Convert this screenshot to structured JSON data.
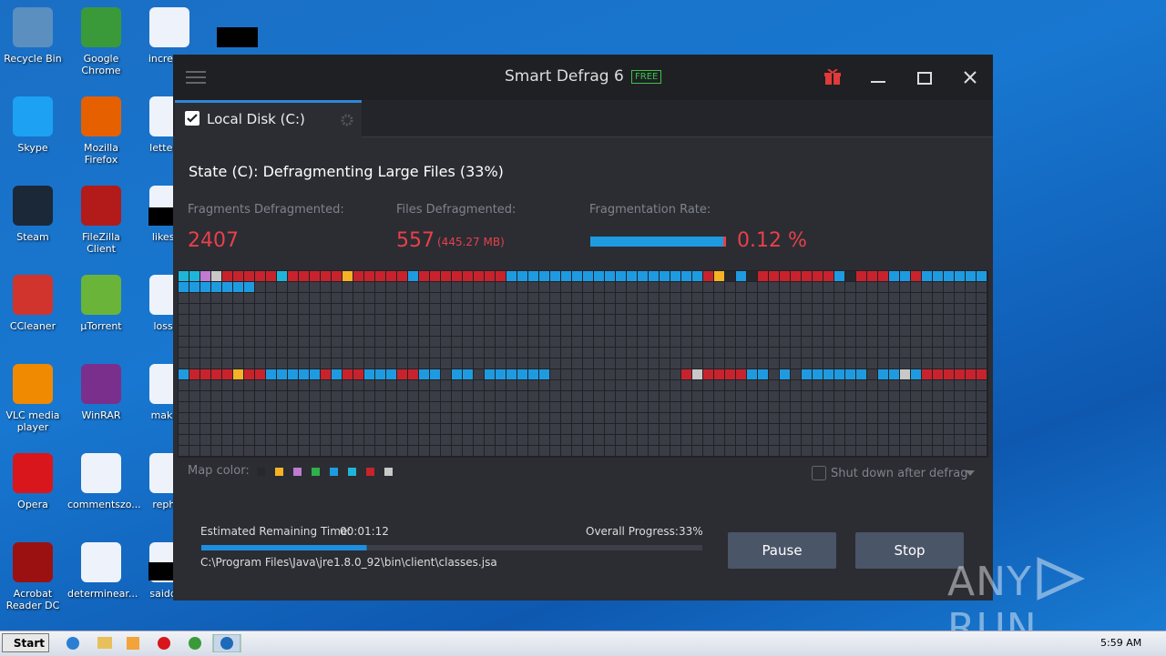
{
  "desktop": {
    "icons": [
      "Recycle Bin",
      "Skype",
      "Steam",
      "CCleaner",
      "VLC media player",
      "Opera",
      "Acrobat Reader DC",
      "Google Chrome",
      "Mozilla Firefox",
      "FileZilla Client",
      "µTorrent",
      "WinRAR",
      "commentszo...",
      "determinear...",
      "increase",
      "letterun",
      "likeson",
      "lossba",
      "making",
      "rephys",
      "saiddefi"
    ]
  },
  "window": {
    "title": "Smart Defrag 6",
    "badge": "FREE",
    "tab": "Local Disk (C:)",
    "state": "State (C): Defragmenting Large Files (33%)",
    "stats": [
      {
        "label": "Fragments Defragmented:",
        "value": "2407"
      },
      {
        "label": "Files Defragmented:",
        "value": "557",
        "detail": "(445.27 MB)"
      },
      {
        "label": "Fragmentation Rate:",
        "value": "0.12 %"
      }
    ],
    "map_color_label": "Map color:",
    "shutdown_option": "Shut down after defrag",
    "remaining_label": "Estimated Remaining Time:",
    "remaining_time": "00:01:12",
    "progress_label": "Overall Progress:",
    "progress": {
      "value": 33,
      "label": "33%"
    },
    "current_file": "C:\\Program Files\\Java\\jre1.8.0_92\\bin\\client\\classes.jsa",
    "buttons": [
      "Pause",
      "Stop"
    ]
  },
  "taskbar": {
    "start": "Start",
    "clock": "5:59 AM"
  },
  "watermark": [
    "ANY",
    "RUN"
  ]
}
